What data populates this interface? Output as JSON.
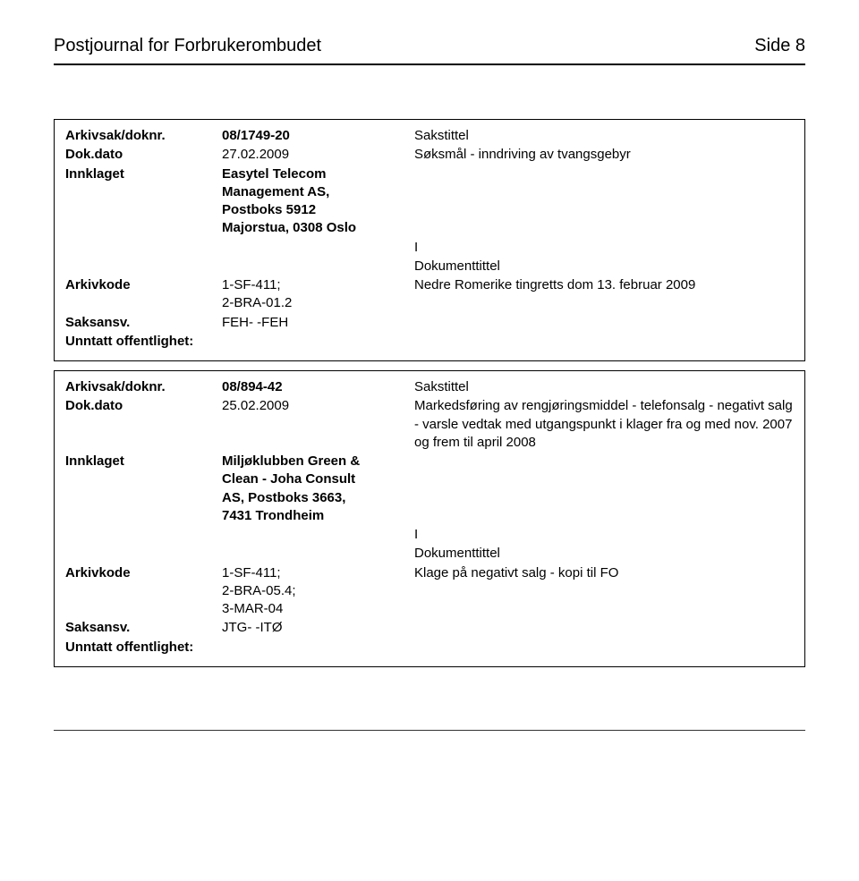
{
  "header": {
    "title": "Postjournal for Forbrukerombudet",
    "page_label": "Side 8"
  },
  "records": [
    {
      "arkivsak": {
        "label": "Arkivsak/doknr.",
        "value": "08/1749-20",
        "sakstittel_label": "Sakstittel"
      },
      "dokdato": {
        "label": "Dok.dato",
        "value": "27.02.2009",
        "sakstittel_text": "Søksmål - inndriving av tvangsgebyr"
      },
      "innklaget": {
        "label": "Innklaget",
        "value_lines": [
          "Easytel Telecom",
          "Management AS,",
          "Postboks 5912",
          "Majorstua, 0308 Oslo"
        ]
      },
      "itype": "I",
      "dokumenttittel_label": "Dokumenttittel",
      "arkivkode": {
        "label": "Arkivkode",
        "value_lines": [
          "1-SF-411;",
          "2-BRA-01.2"
        ],
        "text": "Nedre Romerike tingretts dom 13. februar 2009"
      },
      "saksansv": {
        "label": "Saksansv.",
        "value": "FEH- -FEH"
      },
      "unntatt": {
        "label": "Unntatt offentlighet:"
      }
    },
    {
      "arkivsak": {
        "label": "Arkivsak/doknr.",
        "value": "08/894-42",
        "sakstittel_label": "Sakstittel"
      },
      "dokdato": {
        "label": "Dok.dato",
        "value": "25.02.2009",
        "sakstittel_text": "Markedsføring av rengjøringsmiddel - telefonsalg - negativt salg - varsle vedtak med utgangspunkt i klager fra og med nov. 2007 og frem til april 2008"
      },
      "innklaget": {
        "label": "Innklaget",
        "value_lines": [
          "Miljøklubben Green &",
          "Clean - Joha Consult",
          "AS, Postboks 3663,",
          "7431 Trondheim"
        ]
      },
      "itype": "I",
      "dokumenttittel_label": "Dokumenttittel",
      "arkivkode": {
        "label": "Arkivkode",
        "value_lines": [
          "1-SF-411;",
          "2-BRA-05.4;",
          "3-MAR-04"
        ],
        "text": "Klage på negativt salg - kopi  til FO"
      },
      "saksansv": {
        "label": "Saksansv.",
        "value": "JTG- -ITØ"
      },
      "unntatt": {
        "label": "Unntatt offentlighet:"
      }
    }
  ]
}
